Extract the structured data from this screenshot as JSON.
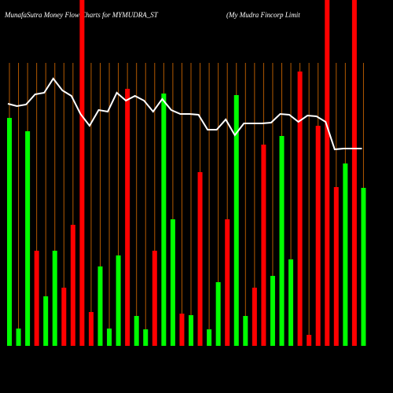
{
  "chart_data": {
    "type": "bar",
    "title": "MunafaSutra  Money Flow  Charts for MYMUDRA_ST",
    "subtitle": "(My Mudra  Fincorp Limit",
    "ylim": [
      0,
      440
    ],
    "series": [
      {
        "name": "money-flow",
        "colors": [
          "#00ff00",
          "#00ff00",
          "#00ff00",
          "#ff0000",
          "#00ff00",
          "#00ff00",
          "#ff0000",
          "#ff0000",
          "#ff0000",
          "#ff0000",
          "#00ff00",
          "#00ff00",
          "#00ff00",
          "#ff0000",
          "#00ff00",
          "#00ff00",
          "#ff0000",
          "#00ff00",
          "#00ff00",
          "#ff0000",
          "#00ff00",
          "#ff0000",
          "#00ff00",
          "#00ff00",
          "#ff0000",
          "#00ff00",
          "#00ff00",
          "#ff0000",
          "#ff0000",
          "#00ff00",
          "#00ff00",
          "#00ff00",
          "#ff0000",
          "#ff0000",
          "#ff0000",
          "#ff0000",
          "#ff0000",
          "#00ff00",
          "#ff0000",
          "#00ff00"
        ],
        "values": [
          290,
          22,
          273,
          121,
          63,
          121,
          74,
          154,
          440,
          43,
          101,
          22,
          115,
          327,
          38,
          21,
          121,
          321,
          161,
          41,
          39,
          221,
          21,
          81,
          161,
          319,
          38,
          74,
          256,
          89,
          267,
          110,
          349,
          14,
          280,
          440,
          202,
          232,
          440,
          201
        ]
      },
      {
        "name": "price",
        "type": "line",
        "color": "#ffffff",
        "values": [
          308,
          305,
          307,
          320,
          322,
          340,
          325,
          318,
          295,
          280,
          300,
          298,
          322,
          312,
          318,
          312,
          298,
          314,
          300,
          295,
          295,
          294,
          275,
          275,
          288,
          268,
          283,
          283,
          283,
          284,
          295,
          294,
          285,
          293,
          292,
          285,
          250,
          251,
          251,
          251
        ]
      }
    ]
  }
}
